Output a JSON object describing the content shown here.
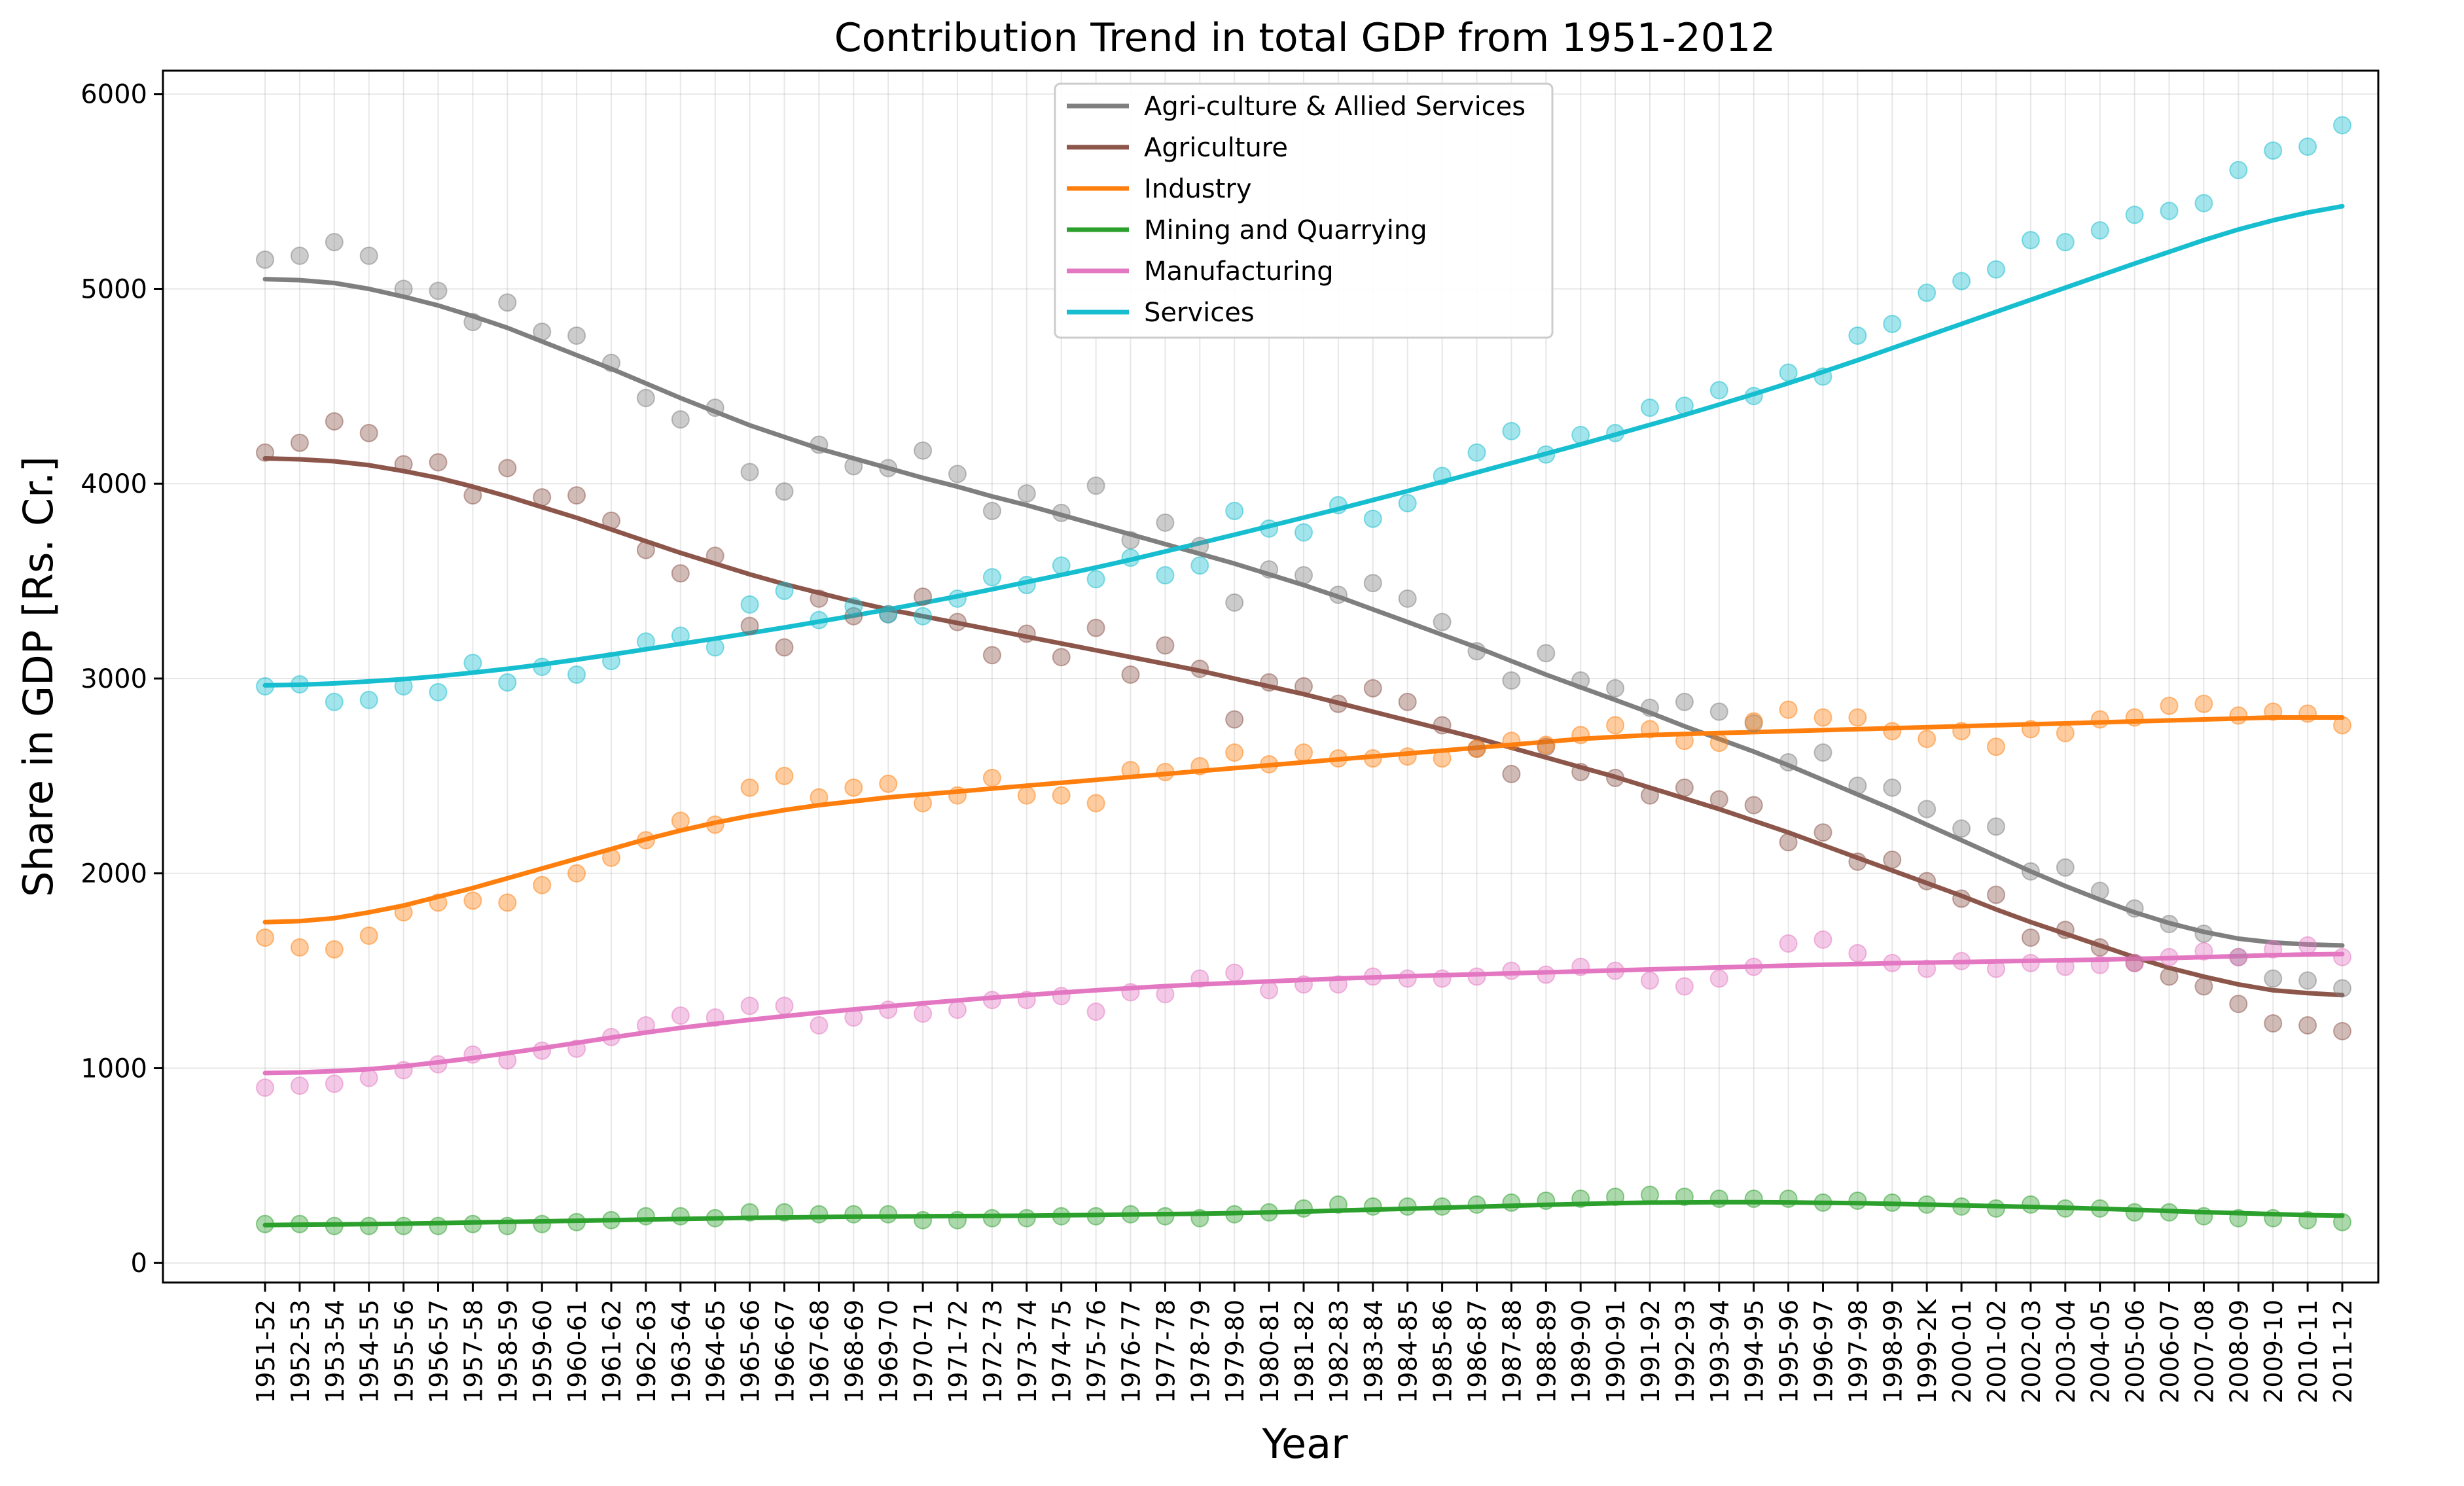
{
  "chart_data": {
    "type": "line",
    "title": "Contribution Trend in total GDP from 1951-2012",
    "xlabel": "Year",
    "ylabel": "Share in GDP [Rs. Cr.]",
    "ylim": [
      -100,
      6120
    ],
    "yticks": [
      0,
      1000,
      2000,
      3000,
      4000,
      5000,
      6000
    ],
    "grid": true,
    "legend_position": "upper center",
    "categories": [
      "1951-52",
      "1952-53",
      "1953-54",
      "1954-55",
      "1955-56",
      "1956-57",
      "1957-58",
      "1958-59",
      "1959-60",
      "1960-61",
      "1961-62",
      "1962-63",
      "1963-64",
      "1964-65",
      "1965-66",
      "1966-67",
      "1967-68",
      "1968-69",
      "1969-70",
      "1970-71",
      "1971-72",
      "1972-73",
      "1973-74",
      "1974-75",
      "1975-76",
      "1976-77",
      "1977-78",
      "1978-79",
      "1979-80",
      "1980-81",
      "1981-82",
      "1982-83",
      "1983-84",
      "1984-85",
      "1985-86",
      "1986-87",
      "1987-88",
      "1988-89",
      "1989-90",
      "1990-91",
      "1991-92",
      "1992-93",
      "1993-94",
      "1994-95",
      "1995-96",
      "1996-97",
      "1997-98",
      "1998-99",
      "1999-2K",
      "2000-01",
      "2001-02",
      "2002-03",
      "2003-04",
      "2004-05",
      "2005-06",
      "2006-07",
      "2007-08",
      "2008-09",
      "2009-10",
      "2010-11",
      "2011-12"
    ],
    "series": [
      {
        "name": "Agri-culture & Allied Services",
        "color": "#7f7f7f",
        "points": [
          5150,
          5170,
          5240,
          5170,
          5000,
          4990,
          4830,
          4930,
          4780,
          4760,
          4620,
          4440,
          4330,
          4390,
          4060,
          3960,
          4200,
          4090,
          4080,
          4170,
          4050,
          3860,
          3950,
          3850,
          3990,
          3710,
          3800,
          3680,
          3390,
          3560,
          3530,
          3430,
          3490,
          3410,
          3290,
          3140,
          2990,
          3130,
          2990,
          2950,
          2850,
          2880,
          2830,
          2770,
          2570,
          2620,
          2450,
          2440,
          2330,
          2230,
          2240,
          2010,
          2030,
          1910,
          1820,
          1740,
          1690,
          1570,
          1460,
          1450,
          1410
        ],
        "trend": [
          5050,
          5045,
          5030,
          5000,
          4960,
          4915,
          4860,
          4800,
          4730,
          4660,
          4590,
          4515,
          4440,
          4370,
          4300,
          4240,
          4180,
          4130,
          4080,
          4030,
          3985,
          3935,
          3890,
          3840,
          3790,
          3740,
          3690,
          3640,
          3590,
          3535,
          3480,
          3420,
          3355,
          3290,
          3225,
          3160,
          3090,
          3020,
          2955,
          2890,
          2825,
          2755,
          2690,
          2625,
          2555,
          2480,
          2405,
          2330,
          2250,
          2170,
          2090,
          2010,
          1935,
          1865,
          1800,
          1745,
          1700,
          1665,
          1645,
          1635,
          1630
        ]
      },
      {
        "name": "Agriculture",
        "color": "#8c564b",
        "points": [
          4160,
          4210,
          4320,
          4260,
          4100,
          4110,
          3940,
          4080,
          3930,
          3940,
          3810,
          3660,
          3540,
          3630,
          3270,
          3160,
          3410,
          3320,
          3330,
          3420,
          3290,
          3120,
          3230,
          3110,
          3260,
          3020,
          3170,
          3050,
          2790,
          2980,
          2960,
          2870,
          2950,
          2880,
          2760,
          2640,
          2510,
          2650,
          2520,
          2490,
          2400,
          2440,
          2380,
          2350,
          2160,
          2210,
          2060,
          2070,
          1960,
          1870,
          1890,
          1670,
          1710,
          1620,
          1540,
          1470,
          1420,
          1330,
          1230,
          1220,
          1190
        ],
        "trend": [
          4130,
          4125,
          4115,
          4095,
          4065,
          4030,
          3985,
          3935,
          3880,
          3825,
          3765,
          3705,
          3645,
          3590,
          3535,
          3485,
          3440,
          3395,
          3355,
          3320,
          3285,
          3250,
          3215,
          3180,
          3145,
          3110,
          3075,
          3040,
          3000,
          2960,
          2920,
          2875,
          2830,
          2785,
          2740,
          2695,
          2645,
          2595,
          2545,
          2495,
          2440,
          2385,
          2330,
          2270,
          2210,
          2145,
          2080,
          2015,
          1950,
          1885,
          1815,
          1750,
          1690,
          1630,
          1570,
          1515,
          1470,
          1430,
          1400,
          1385,
          1375
        ]
      },
      {
        "name": "Industry",
        "color": "#ff7f0e",
        "points": [
          1670,
          1620,
          1610,
          1680,
          1800,
          1850,
          1860,
          1850,
          1940,
          2000,
          2080,
          2170,
          2270,
          2250,
          2440,
          2500,
          2390,
          2440,
          2460,
          2360,
          2400,
          2490,
          2400,
          2400,
          2360,
          2530,
          2520,
          2550,
          2620,
          2560,
          2620,
          2590,
          2590,
          2600,
          2590,
          2640,
          2680,
          2660,
          2710,
          2760,
          2740,
          2680,
          2670,
          2780,
          2840,
          2800,
          2800,
          2730,
          2690,
          2730,
          2650,
          2740,
          2720,
          2790,
          2800,
          2860,
          2870,
          2810,
          2830,
          2820,
          2760
        ],
        "trend": [
          1750,
          1755,
          1770,
          1800,
          1835,
          1880,
          1925,
          1975,
          2025,
          2075,
          2125,
          2175,
          2220,
          2260,
          2295,
          2325,
          2350,
          2370,
          2390,
          2405,
          2420,
          2435,
          2450,
          2465,
          2480,
          2495,
          2510,
          2525,
          2540,
          2555,
          2570,
          2585,
          2600,
          2615,
          2630,
          2645,
          2660,
          2675,
          2690,
          2700,
          2710,
          2715,
          2720,
          2725,
          2730,
          2735,
          2740,
          2745,
          2750,
          2755,
          2760,
          2765,
          2770,
          2775,
          2780,
          2785,
          2790,
          2795,
          2800,
          2800,
          2800
        ]
      },
      {
        "name": "Mining and Quarrying",
        "color": "#2ca02c",
        "points": [
          200,
          200,
          190,
          190,
          190,
          190,
          200,
          190,
          200,
          210,
          220,
          240,
          240,
          230,
          260,
          260,
          250,
          250,
          250,
          220,
          220,
          230,
          230,
          240,
          240,
          250,
          240,
          230,
          250,
          260,
          280,
          300,
          290,
          290,
          290,
          300,
          310,
          320,
          330,
          340,
          350,
          340,
          330,
          330,
          330,
          310,
          320,
          310,
          300,
          290,
          280,
          300,
          280,
          280,
          260,
          260,
          240,
          230,
          230,
          220,
          210
        ],
        "trend": [
          195,
          197,
          198,
          200,
          202,
          205,
          208,
          211,
          214,
          217,
          220,
          223,
          226,
          229,
          232,
          234,
          236,
          238,
          239,
          240,
          241,
          242,
          243,
          245,
          247,
          249,
          251,
          253,
          256,
          260,
          264,
          269,
          274,
          279,
          284,
          289,
          294,
          299,
          303,
          307,
          310,
          311,
          312,
          312,
          311,
          309,
          307,
          304,
          300,
          296,
          292,
          288,
          284,
          279,
          273,
          267,
          261,
          256,
          251,
          246,
          243
        ]
      },
      {
        "name": "Manufacturing",
        "color": "#e377c2",
        "points": [
          900,
          910,
          920,
          950,
          990,
          1020,
          1070,
          1040,
          1090,
          1100,
          1160,
          1220,
          1270,
          1260,
          1320,
          1320,
          1220,
          1260,
          1300,
          1280,
          1300,
          1350,
          1350,
          1370,
          1290,
          1390,
          1380,
          1460,
          1490,
          1400,
          1430,
          1430,
          1470,
          1460,
          1460,
          1470,
          1500,
          1480,
          1520,
          1500,
          1450,
          1420,
          1460,
          1520,
          1640,
          1660,
          1590,
          1540,
          1510,
          1550,
          1510,
          1540,
          1520,
          1530,
          1540,
          1570,
          1600,
          1570,
          1610,
          1630,
          1570
        ],
        "trend": [
          975,
          978,
          985,
          995,
          1010,
          1030,
          1052,
          1077,
          1103,
          1130,
          1157,
          1183,
          1207,
          1228,
          1248,
          1267,
          1285,
          1302,
          1318,
          1333,
          1348,
          1362,
          1375,
          1388,
          1400,
          1411,
          1421,
          1430,
          1438,
          1446,
          1453,
          1460,
          1466,
          1472,
          1477,
          1482,
          1487,
          1492,
          1497,
          1502,
          1507,
          1512,
          1517,
          1522,
          1527,
          1531,
          1535,
          1539,
          1542,
          1545,
          1548,
          1551,
          1554,
          1557,
          1561,
          1565,
          1570,
          1575,
          1580,
          1584,
          1586
        ]
      },
      {
        "name": "Services",
        "color": "#17becf",
        "points": [
          2960,
          2970,
          2880,
          2890,
          2960,
          2930,
          3080,
          2980,
          3060,
          3020,
          3090,
          3190,
          3220,
          3160,
          3380,
          3450,
          3300,
          3370,
          3330,
          3320,
          3410,
          3520,
          3480,
          3580,
          3510,
          3620,
          3530,
          3580,
          3860,
          3770,
          3750,
          3890,
          3820,
          3900,
          4040,
          4160,
          4270,
          4150,
          4250,
          4260,
          4390,
          4400,
          4480,
          4450,
          4570,
          4550,
          4760,
          4820,
          4980,
          5040,
          5100,
          5250,
          5240,
          5300,
          5380,
          5400,
          5440,
          5610,
          5710,
          5730,
          5840
        ],
        "trend": [
          2965,
          2968,
          2975,
          2985,
          2997,
          3012,
          3030,
          3050,
          3072,
          3097,
          3123,
          3150,
          3178,
          3205,
          3233,
          3262,
          3292,
          3323,
          3355,
          3388,
          3422,
          3458,
          3495,
          3532,
          3570,
          3610,
          3652,
          3695,
          3738,
          3782,
          3826,
          3870,
          3916,
          3962,
          4010,
          4058,
          4106,
          4154,
          4202,
          4252,
          4302,
          4353,
          4406,
          4460,
          4516,
          4574,
          4634,
          4696,
          4758,
          4820,
          4882,
          4944,
          5006,
          5068,
          5130,
          5190,
          5250,
          5305,
          5352,
          5392,
          5424
        ]
      }
    ]
  }
}
